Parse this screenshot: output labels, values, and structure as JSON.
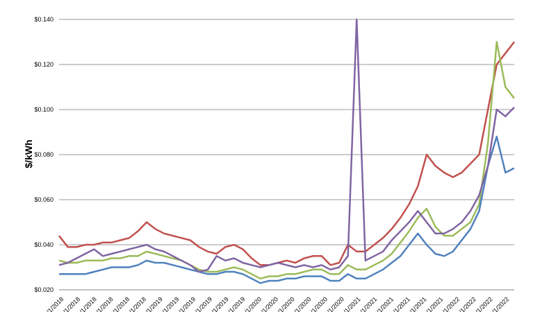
{
  "chart_data": {
    "type": "line",
    "title": "",
    "xlabel": "",
    "ylabel": "$/kWh",
    "ylim": [
      0.02,
      0.14
    ],
    "y_ticks": [
      "$0.020",
      "$0.040",
      "$0.060",
      "$0.080",
      "$0.100",
      "$0.120",
      "$0.140"
    ],
    "x_ticks": [
      "/1/2018",
      "/1/2018",
      "/1/2018",
      "/1/2018",
      "/1/2018",
      "/1/2018",
      "/1/2019",
      "/1/2019",
      "/1/2019",
      "/1/2019",
      "/1/2019",
      "/1/2019",
      "/1/2020",
      "/1/2020",
      "/1/2020",
      "/1/2020",
      "/1/2020",
      "/1/2020",
      "/1/2021",
      "/1/2021",
      "/1/2021",
      "/1/2021",
      "/1/2021",
      "/1/2021",
      "/1/2022",
      "/1/2022",
      "/1/2022",
      "/1/2022"
    ],
    "grid": "horizontal",
    "legend": "none",
    "series": [
      {
        "color": "#c0504d",
        "values": [
          0.044,
          0.039,
          0.039,
          0.04,
          0.04,
          0.041,
          0.041,
          0.042,
          0.043,
          0.046,
          0.05,
          0.047,
          0.045,
          0.044,
          0.043,
          0.042,
          0.039,
          0.037,
          0.036,
          0.039,
          0.04,
          0.038,
          0.034,
          0.031,
          0.031,
          0.032,
          0.033,
          0.032,
          0.034,
          0.035,
          0.035,
          0.031,
          0.032,
          0.04,
          0.037,
          0.037,
          0.04,
          0.043,
          0.047,
          0.052,
          0.058,
          0.066,
          0.08,
          0.075,
          0.072,
          0.07,
          0.072,
          0.076,
          0.08,
          0.1,
          0.12,
          0.125,
          0.13
        ]
      },
      {
        "color": "#9bbb59",
        "values": [
          0.033,
          0.032,
          0.032,
          0.033,
          0.033,
          0.033,
          0.034,
          0.034,
          0.035,
          0.035,
          0.037,
          0.036,
          0.035,
          0.034,
          0.033,
          0.031,
          0.029,
          0.028,
          0.028,
          0.029,
          0.03,
          0.029,
          0.027,
          0.025,
          0.026,
          0.026,
          0.027,
          0.027,
          0.028,
          0.029,
          0.029,
          0.027,
          0.027,
          0.031,
          0.029,
          0.029,
          0.031,
          0.033,
          0.036,
          0.041,
          0.046,
          0.052,
          0.056,
          0.048,
          0.044,
          0.044,
          0.047,
          0.05,
          0.058,
          0.085,
          0.13,
          0.11,
          0.105
        ]
      },
      {
        "color": "#4f81bd",
        "values": [
          0.027,
          0.027,
          0.027,
          0.027,
          0.028,
          0.029,
          0.03,
          0.03,
          0.03,
          0.031,
          0.033,
          0.032,
          0.032,
          0.031,
          0.03,
          0.029,
          0.028,
          0.027,
          0.027,
          0.028,
          0.028,
          0.027,
          0.025,
          0.023,
          0.024,
          0.024,
          0.025,
          0.025,
          0.026,
          0.026,
          0.026,
          0.024,
          0.024,
          0.027,
          0.025,
          0.025,
          0.027,
          0.029,
          0.032,
          0.035,
          0.04,
          0.045,
          0.04,
          0.036,
          0.035,
          0.037,
          0.042,
          0.047,
          0.055,
          0.075,
          0.088,
          0.072,
          0.074
        ]
      },
      {
        "color": "#8064a2",
        "values": [
          0.031,
          0.032,
          0.034,
          0.036,
          0.038,
          0.035,
          0.036,
          0.037,
          0.038,
          0.039,
          0.04,
          0.038,
          0.037,
          0.035,
          0.033,
          0.031,
          0.028,
          0.029,
          0.035,
          0.033,
          0.034,
          0.032,
          0.031,
          0.03,
          0.031,
          0.032,
          0.031,
          0.03,
          0.031,
          0.03,
          0.031,
          0.029,
          0.03,
          0.035,
          0.14,
          0.033,
          0.035,
          0.037,
          0.042,
          0.046,
          0.05,
          0.055,
          0.05,
          0.045,
          0.045,
          0.047,
          0.05,
          0.055,
          0.062,
          0.075,
          0.1,
          0.097,
          0.101
        ]
      }
    ]
  }
}
